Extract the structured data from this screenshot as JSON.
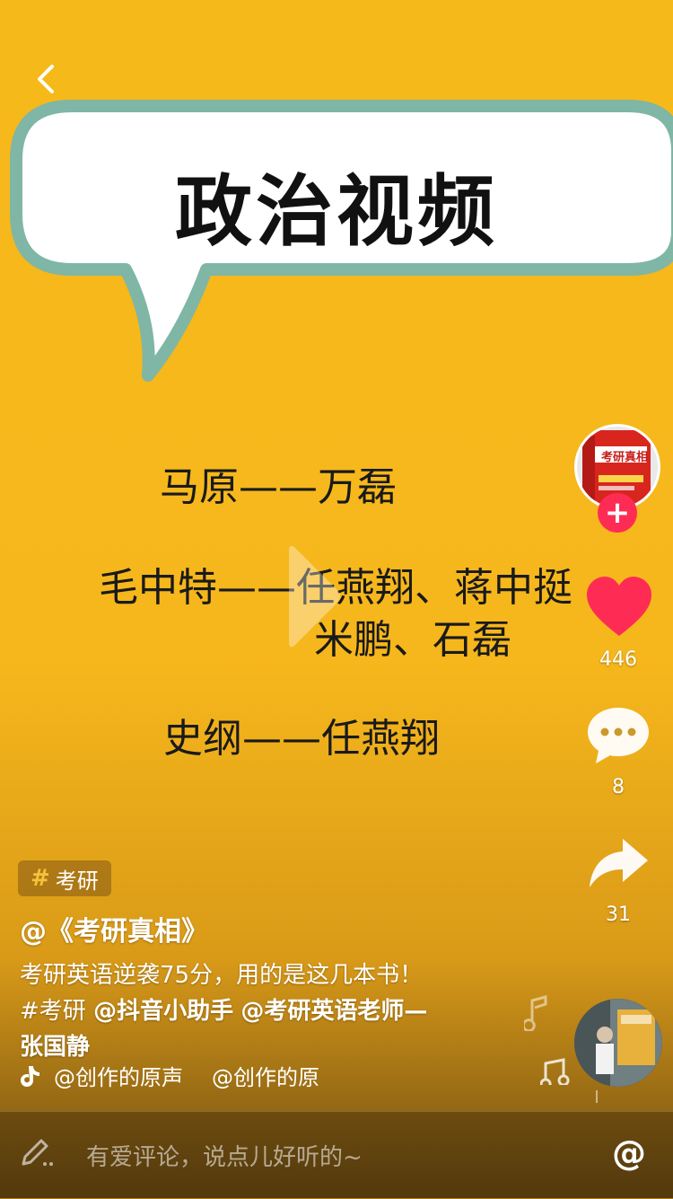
{
  "video": {
    "bubble_title": "政治视频",
    "lines": [
      "马原——万磊",
      "毛中特——任燕翔、蒋中挺",
      "米鹏、石磊",
      "史纲——任燕翔"
    ]
  },
  "actions": {
    "likes": "446",
    "comments": "8",
    "shares": "31"
  },
  "info": {
    "topic_tag": "考研",
    "author": "@《考研真相》",
    "caption_line1": "考研英语逆袭75分，用的是这几本书！",
    "caption_line2_tag": "#考研",
    "caption_line2_mention1": "@抖音小助手",
    "caption_line2_mention2": "@考研英语老师—",
    "caption_line3": "张国静",
    "music_1": "@创作的原声",
    "music_2": "@创作的原",
    "avatar_book_text": "考研真相"
  },
  "comment_bar": {
    "placeholder": "有爱评论，说点儿好听的~",
    "at_label": "@"
  },
  "colors": {
    "background": "#f6b91a",
    "like": "#fe2c55",
    "bubble_border": "#7fb6a5"
  }
}
